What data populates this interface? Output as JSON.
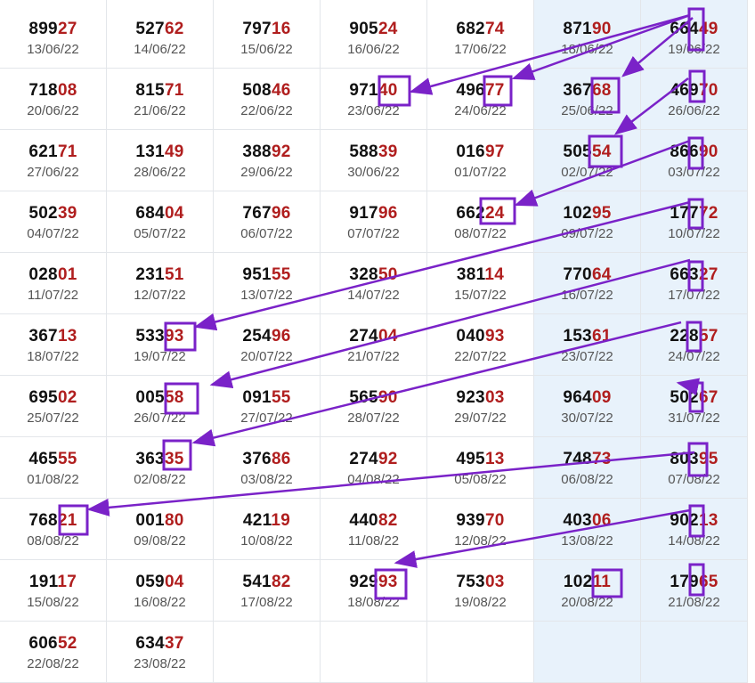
{
  "colors": {
    "tail": "#b01e1e",
    "highlight_column": "#e8f2fb",
    "annotation": "#7a22c8"
  },
  "rows": [
    [
      {
        "n": "89927",
        "d": "13/06/22"
      },
      {
        "n": "52762",
        "d": "14/06/22"
      },
      {
        "n": "79716",
        "d": "15/06/22"
      },
      {
        "n": "90524",
        "d": "16/06/22"
      },
      {
        "n": "68274",
        "d": "17/06/22"
      },
      {
        "n": "87190",
        "d": "18/06/22"
      },
      {
        "n": "66449",
        "d": "19/06/22"
      }
    ],
    [
      {
        "n": "71808",
        "d": "20/06/22"
      },
      {
        "n": "81571",
        "d": "21/06/22"
      },
      {
        "n": "50846",
        "d": "22/06/22"
      },
      {
        "n": "97140",
        "d": "23/06/22"
      },
      {
        "n": "49677",
        "d": "24/06/22"
      },
      {
        "n": "36768",
        "d": "25/06/22"
      },
      {
        "n": "46970",
        "d": "26/06/22"
      }
    ],
    [
      {
        "n": "62171",
        "d": "27/06/22"
      },
      {
        "n": "13149",
        "d": "28/06/22"
      },
      {
        "n": "38892",
        "d": "29/06/22"
      },
      {
        "n": "58839",
        "d": "30/06/22"
      },
      {
        "n": "01697",
        "d": "01/07/22"
      },
      {
        "n": "50554",
        "d": "02/07/22"
      },
      {
        "n": "86690",
        "d": "03/07/22"
      }
    ],
    [
      {
        "n": "50239",
        "d": "04/07/22"
      },
      {
        "n": "68404",
        "d": "05/07/22"
      },
      {
        "n": "76796",
        "d": "06/07/22"
      },
      {
        "n": "91796",
        "d": "07/07/22"
      },
      {
        "n": "66224",
        "d": "08/07/22"
      },
      {
        "n": "10295",
        "d": "09/07/22"
      },
      {
        "n": "17772",
        "d": "10/07/22"
      }
    ],
    [
      {
        "n": "02801",
        "d": "11/07/22"
      },
      {
        "n": "23151",
        "d": "12/07/22"
      },
      {
        "n": "95155",
        "d": "13/07/22"
      },
      {
        "n": "32850",
        "d": "14/07/22"
      },
      {
        "n": "38114",
        "d": "15/07/22"
      },
      {
        "n": "77064",
        "d": "16/07/22"
      },
      {
        "n": "66327",
        "d": "17/07/22"
      }
    ],
    [
      {
        "n": "36713",
        "d": "18/07/22"
      },
      {
        "n": "53393",
        "d": "19/07/22"
      },
      {
        "n": "25496",
        "d": "20/07/22"
      },
      {
        "n": "27404",
        "d": "21/07/22"
      },
      {
        "n": "04093",
        "d": "22/07/22"
      },
      {
        "n": "15361",
        "d": "23/07/22"
      },
      {
        "n": "22857",
        "d": "24/07/22"
      }
    ],
    [
      {
        "n": "69502",
        "d": "25/07/22"
      },
      {
        "n": "00558",
        "d": "26/07/22"
      },
      {
        "n": "09155",
        "d": "27/07/22"
      },
      {
        "n": "56590",
        "d": "28/07/22"
      },
      {
        "n": "92303",
        "d": "29/07/22"
      },
      {
        "n": "96409",
        "d": "30/07/22"
      },
      {
        "n": "50267",
        "d": "31/07/22"
      }
    ],
    [
      {
        "n": "46555",
        "d": "01/08/22"
      },
      {
        "n": "36335",
        "d": "02/08/22"
      },
      {
        "n": "37686",
        "d": "03/08/22"
      },
      {
        "n": "27492",
        "d": "04/08/22"
      },
      {
        "n": "49513",
        "d": "05/08/22"
      },
      {
        "n": "74873",
        "d": "06/08/22"
      },
      {
        "n": "80395",
        "d": "07/08/22"
      }
    ],
    [
      {
        "n": "76821",
        "d": "08/08/22"
      },
      {
        "n": "00180",
        "d": "09/08/22"
      },
      {
        "n": "42119",
        "d": "10/08/22"
      },
      {
        "n": "44082",
        "d": "11/08/22"
      },
      {
        "n": "93970",
        "d": "12/08/22"
      },
      {
        "n": "40306",
        "d": "13/08/22"
      },
      {
        "n": "90213",
        "d": "14/08/22"
      }
    ],
    [
      {
        "n": "19117",
        "d": "15/08/22"
      },
      {
        "n": "05904",
        "d": "16/08/22"
      },
      {
        "n": "54182",
        "d": "17/08/22"
      },
      {
        "n": "92993",
        "d": "18/08/22"
      },
      {
        "n": "75303",
        "d": "19/08/22"
      },
      {
        "n": "10211",
        "d": "20/08/22"
      },
      {
        "n": "17965",
        "d": "21/08/22"
      }
    ],
    [
      {
        "n": "60652",
        "d": "22/08/22"
      },
      {
        "n": "63437",
        "d": "23/08/22"
      }
    ]
  ]
}
